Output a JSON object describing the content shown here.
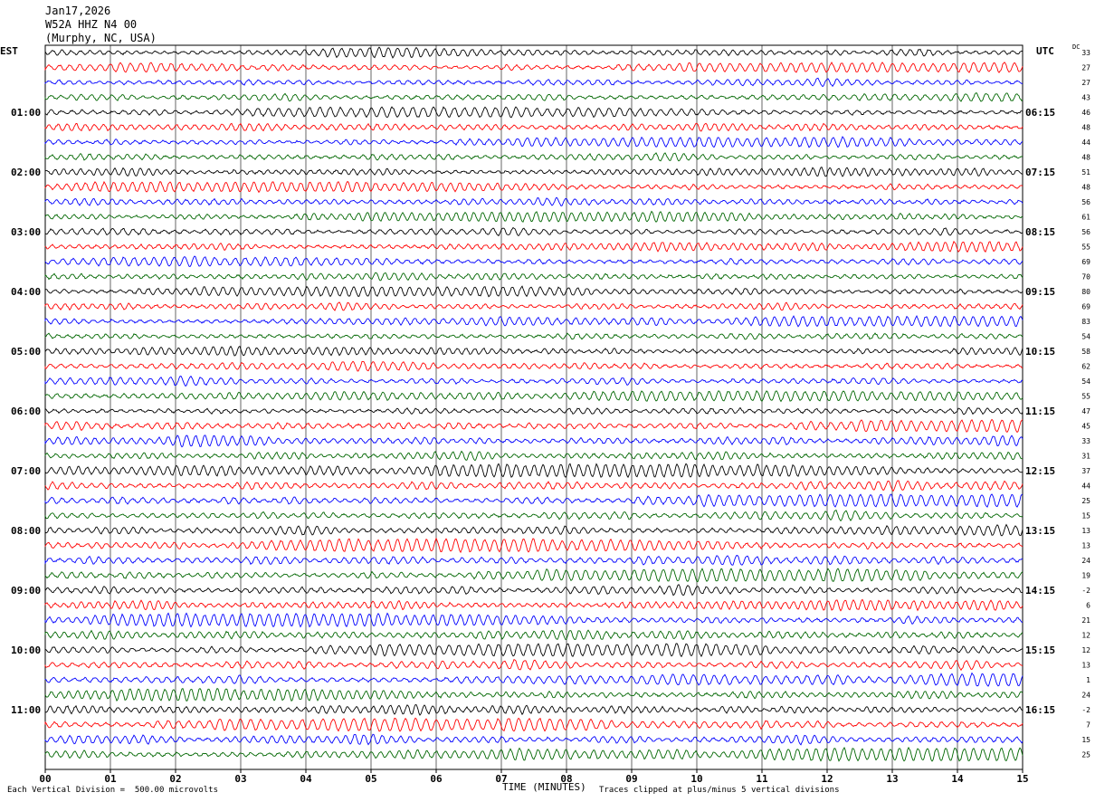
{
  "header": {
    "date": "Jan17,2026",
    "station": "W52A HHZ N4 00",
    "location": "(Murphy, NC, USA)"
  },
  "left_timezone": "EST",
  "right_timezone": "UTC",
  "dc_label": "DC",
  "footer": {
    "division": "Each Vertical Division =  500.00 microvolts",
    "xlabel": "TIME (MINUTES)",
    "clip_note": "Traces clipped at plus/minus 5 vertical divisions"
  },
  "colors": {
    "trace_cycle": [
      "#000000",
      "#ff0000",
      "#0000ff",
      "#006600"
    ],
    "grid": "#000000",
    "background": "#ffffff"
  },
  "chart_data": {
    "type": "line",
    "title": "",
    "xlabel": "TIME (MINUTES)",
    "ylabel": "",
    "xlim": [
      0,
      15
    ],
    "x_ticks": [
      "00",
      "01",
      "02",
      "03",
      "04",
      "05",
      "06",
      "07",
      "08",
      "09",
      "10",
      "11",
      "12",
      "13",
      "14",
      "15"
    ],
    "left_hour_labels": [
      "01:00",
      "02:00",
      "03:00",
      "04:00",
      "05:00",
      "06:00",
      "07:00",
      "08:00",
      "09:00",
      "10:00",
      "11:00"
    ],
    "right_hour_labels": [
      "06:15",
      "07:15",
      "08:15",
      "09:15",
      "10:15",
      "11:15",
      "12:15",
      "13:15",
      "14:15",
      "15:15",
      "16:15"
    ],
    "trace_count": 48,
    "dc_offsets": [
      33,
      27,
      27,
      43,
      46,
      48,
      44,
      48,
      51,
      48,
      56,
      61,
      56,
      55,
      69,
      70,
      80,
      69,
      83,
      54,
      58,
      62,
      54,
      55,
      47,
      45,
      33,
      31,
      37,
      44,
      25,
      15,
      13,
      13,
      24,
      19,
      -2,
      6,
      21,
      12,
      12,
      13,
      1,
      24,
      -2,
      7,
      15,
      25
    ],
    "grid": true
  }
}
